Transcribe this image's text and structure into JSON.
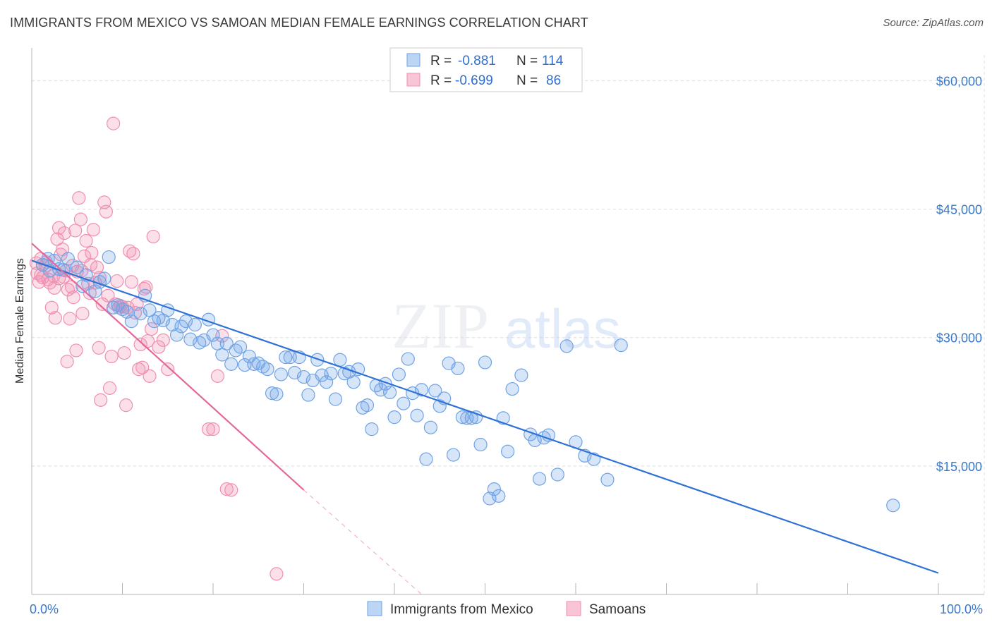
{
  "title": "IMMIGRANTS FROM MEXICO VS SAMOAN MEDIAN FEMALE EARNINGS CORRELATION CHART",
  "source": "Source: ZipAtlas.com",
  "watermark": {
    "zip": "ZIP",
    "atlas": "atlas"
  },
  "colors": {
    "blue": "#6fa3e6",
    "blue_line": "#2f72d6",
    "pink": "#f08fb0",
    "pink_line": "#e4689a",
    "grid": "#dcdcdc",
    "tick_text": "#3a78c9"
  },
  "legend": {
    "rows": [
      {
        "r_label": "R =",
        "r_value": "-0.881",
        "n_label": "N =",
        "n_value": "114"
      },
      {
        "r_label": "R =",
        "r_value": "-0.699",
        "n_label": "N =",
        "n_value": "86"
      }
    ]
  },
  "chart_data": {
    "type": "scatter",
    "title": "IMMIGRANTS FROM MEXICO VS SAMOAN MEDIAN FEMALE EARNINGS CORRELATION CHART",
    "xlabel": "",
    "ylabel": "Median Female Earnings",
    "xlim": [
      0,
      100
    ],
    "ylim": [
      0,
      63000
    ],
    "x_tick_labels": [
      "0.0%",
      "100.0%"
    ],
    "y_ticks": [
      15000,
      30000,
      45000,
      60000
    ],
    "y_tick_labels": [
      "$15,000",
      "$30,000",
      "$45,000",
      "$60,000"
    ],
    "grid": true,
    "legend_position": "top-center",
    "series": [
      {
        "name": "Immigrants from Mexico",
        "r": -0.881,
        "n": 114,
        "trend": {
          "x0": 0,
          "y0": 39000,
          "x1": 100,
          "y1": 2500
        },
        "points": [
          [
            1.2,
            38500
          ],
          [
            1.8,
            39200
          ],
          [
            2.0,
            37800
          ],
          [
            2.5,
            39000
          ],
          [
            3.0,
            38000
          ],
          [
            3.5,
            37900
          ],
          [
            4.0,
            39200
          ],
          [
            5.0,
            38200
          ],
          [
            5.6,
            36000
          ],
          [
            6.0,
            37300
          ],
          [
            7.0,
            35400
          ],
          [
            7.5,
            36500
          ],
          [
            8.0,
            36900
          ],
          [
            8.5,
            39400
          ],
          [
            9.0,
            33500
          ],
          [
            9.5,
            33800
          ],
          [
            10.0,
            33300
          ],
          [
            10.5,
            33000
          ],
          [
            11.0,
            31900
          ],
          [
            12.0,
            32800
          ],
          [
            12.5,
            34900
          ],
          [
            13.0,
            33200
          ],
          [
            13.5,
            31900
          ],
          [
            14.0,
            32300
          ],
          [
            14.5,
            32000
          ],
          [
            15.0,
            33200
          ],
          [
            15.5,
            31500
          ],
          [
            16.0,
            30300
          ],
          [
            16.5,
            31300
          ],
          [
            17.0,
            31900
          ],
          [
            17.5,
            29800
          ],
          [
            18.0,
            31500
          ],
          [
            18.5,
            29400
          ],
          [
            19.0,
            29700
          ],
          [
            19.5,
            32100
          ],
          [
            20.0,
            30300
          ],
          [
            20.5,
            29300
          ],
          [
            21.0,
            28000
          ],
          [
            21.5,
            29300
          ],
          [
            22.0,
            26900
          ],
          [
            22.5,
            28500
          ],
          [
            23.0,
            28900
          ],
          [
            23.5,
            26800
          ],
          [
            24.0,
            27800
          ],
          [
            24.5,
            26900
          ],
          [
            25.0,
            27000
          ],
          [
            25.5,
            26600
          ],
          [
            26.0,
            26300
          ],
          [
            26.5,
            23500
          ],
          [
            27.0,
            23400
          ],
          [
            27.5,
            25700
          ],
          [
            28.0,
            27700
          ],
          [
            28.5,
            27700
          ],
          [
            29.0,
            25900
          ],
          [
            29.5,
            27700
          ],
          [
            30.0,
            25400
          ],
          [
            30.5,
            23300
          ],
          [
            31.0,
            25000
          ],
          [
            31.5,
            27400
          ],
          [
            32.0,
            25600
          ],
          [
            32.5,
            24800
          ],
          [
            33.0,
            25800
          ],
          [
            33.5,
            22800
          ],
          [
            34.0,
            27400
          ],
          [
            34.5,
            25800
          ],
          [
            35.0,
            26000
          ],
          [
            35.5,
            24800
          ],
          [
            36.0,
            26300
          ],
          [
            36.5,
            21800
          ],
          [
            37.0,
            22100
          ],
          [
            37.5,
            19300
          ],
          [
            38.0,
            24400
          ],
          [
            38.5,
            23900
          ],
          [
            39.0,
            24600
          ],
          [
            39.5,
            23600
          ],
          [
            40.0,
            20700
          ],
          [
            40.5,
            25700
          ],
          [
            41.0,
            22300
          ],
          [
            41.5,
            27500
          ],
          [
            42.0,
            23500
          ],
          [
            42.5,
            20900
          ],
          [
            43.0,
            23900
          ],
          [
            43.5,
            15800
          ],
          [
            44.0,
            19500
          ],
          [
            44.5,
            23800
          ],
          [
            45.0,
            22000
          ],
          [
            45.5,
            22900
          ],
          [
            46.0,
            27000
          ],
          [
            46.5,
            16300
          ],
          [
            47.0,
            26400
          ],
          [
            47.5,
            20700
          ],
          [
            48.0,
            20600
          ],
          [
            48.5,
            20600
          ],
          [
            49.0,
            20700
          ],
          [
            49.5,
            17500
          ],
          [
            50.0,
            27100
          ],
          [
            50.5,
            11200
          ],
          [
            51.0,
            12300
          ],
          [
            51.5,
            11500
          ],
          [
            52.0,
            20600
          ],
          [
            52.5,
            16700
          ],
          [
            53.0,
            24000
          ],
          [
            54.0,
            25600
          ],
          [
            55.0,
            18700
          ],
          [
            55.5,
            18000
          ],
          [
            56.0,
            13500
          ],
          [
            57.0,
            18600
          ],
          [
            58.0,
            14000
          ],
          [
            59.0,
            29000
          ],
          [
            60.0,
            17800
          ],
          [
            61.0,
            16200
          ],
          [
            62.0,
            15800
          ],
          [
            63.5,
            13400
          ],
          [
            65.0,
            29100
          ],
          [
            95.0,
            10400
          ],
          [
            56.5,
            18300
          ]
        ]
      },
      {
        "name": "Samoans",
        "r": -0.699,
        "n": 86,
        "trend": {
          "x0": 0,
          "y0": 41000,
          "x1": 30,
          "y1": 12200,
          "dash_x1": 43,
          "dash_y1": 0
        },
        "points": [
          [
            0.5,
            38700
          ],
          [
            0.8,
            36500
          ],
          [
            1.0,
            37300
          ],
          [
            1.2,
            37000
          ],
          [
            1.5,
            38400
          ],
          [
            1.8,
            36800
          ],
          [
            2.0,
            36400
          ],
          [
            2.2,
            33500
          ],
          [
            2.5,
            35800
          ],
          [
            2.8,
            41500
          ],
          [
            3.0,
            42800
          ],
          [
            3.2,
            39700
          ],
          [
            3.4,
            40300
          ],
          [
            3.6,
            42200
          ],
          [
            3.8,
            37800
          ],
          [
            4.0,
            35600
          ],
          [
            4.2,
            32200
          ],
          [
            4.4,
            35900
          ],
          [
            4.6,
            34700
          ],
          [
            4.8,
            42500
          ],
          [
            5.0,
            37700
          ],
          [
            5.2,
            46300
          ],
          [
            5.4,
            43800
          ],
          [
            5.6,
            32800
          ],
          [
            5.8,
            39500
          ],
          [
            6.0,
            41300
          ],
          [
            6.2,
            36300
          ],
          [
            6.4,
            35200
          ],
          [
            6.6,
            39900
          ],
          [
            6.8,
            42600
          ],
          [
            7.0,
            36400
          ],
          [
            7.2,
            38200
          ],
          [
            7.4,
            28800
          ],
          [
            7.6,
            22700
          ],
          [
            7.8,
            33900
          ],
          [
            8.0,
            45800
          ],
          [
            8.2,
            44700
          ],
          [
            8.4,
            34900
          ],
          [
            8.6,
            24100
          ],
          [
            8.8,
            27800
          ],
          [
            9.0,
            55000
          ],
          [
            9.2,
            33900
          ],
          [
            9.4,
            36600
          ],
          [
            9.6,
            33500
          ],
          [
            9.8,
            33700
          ],
          [
            10.0,
            33600
          ],
          [
            10.2,
            28200
          ],
          [
            10.4,
            22100
          ],
          [
            10.6,
            33500
          ],
          [
            10.8,
            40100
          ],
          [
            11.0,
            36500
          ],
          [
            11.2,
            39800
          ],
          [
            11.4,
            32900
          ],
          [
            11.6,
            33900
          ],
          [
            11.8,
            26300
          ],
          [
            12.0,
            29200
          ],
          [
            12.2,
            26500
          ],
          [
            12.4,
            35700
          ],
          [
            12.6,
            35900
          ],
          [
            12.8,
            29600
          ],
          [
            13.0,
            25500
          ],
          [
            13.2,
            31000
          ],
          [
            13.4,
            41800
          ],
          [
            14.0,
            28900
          ],
          [
            14.5,
            29700
          ],
          [
            15.0,
            26300
          ],
          [
            19.5,
            19300
          ],
          [
            20.0,
            19300
          ],
          [
            20.5,
            25500
          ],
          [
            21.0,
            30200
          ],
          [
            21.5,
            12300
          ],
          [
            22.0,
            12200
          ],
          [
            27.0,
            2400
          ],
          [
            1.0,
            39200
          ],
          [
            1.6,
            38800
          ],
          [
            2.4,
            37200
          ],
          [
            3.0,
            36900
          ],
          [
            3.5,
            37100
          ],
          [
            4.5,
            38400
          ],
          [
            5.5,
            37800
          ],
          [
            6.5,
            38500
          ],
          [
            7.5,
            37000
          ],
          [
            0.6,
            37500
          ],
          [
            2.6,
            32300
          ],
          [
            3.9,
            27200
          ],
          [
            4.9,
            28500
          ]
        ]
      }
    ]
  },
  "bottom_legend": [
    {
      "label": "Immigrants from Mexico"
    },
    {
      "label": "Samoans"
    }
  ]
}
